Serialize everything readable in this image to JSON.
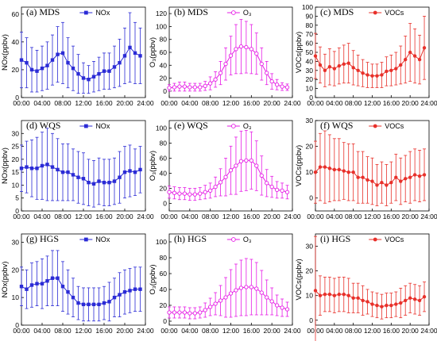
{
  "chart_data": [
    {
      "type": "line",
      "title": "(a) MDS",
      "ylabel": "NOx(ppbv)",
      "color": "#2b2bd6",
      "marker": "square",
      "x": [
        0,
        1,
        2,
        3,
        4,
        5,
        6,
        7,
        8,
        9,
        10,
        11,
        12,
        13,
        14,
        15,
        16,
        17,
        18,
        19,
        20,
        21,
        22,
        23
      ],
      "xticks": [
        "00:00",
        "04:00",
        "08:00",
        "12:00",
        "16:00",
        "20:00",
        "24:00"
      ],
      "ylim": [
        0,
        65
      ],
      "yticks": [
        0,
        20,
        40,
        60
      ],
      "series": [
        {
          "name": "NOx",
          "values": [
            27,
            25,
            20,
            19,
            21,
            23,
            27,
            31,
            32,
            25,
            21,
            17,
            14,
            13,
            15,
            17,
            19,
            19,
            22,
            25,
            30,
            36,
            32,
            30
          ],
          "err": [
            20,
            18,
            16,
            15,
            16,
            17,
            18,
            20,
            22,
            18,
            16,
            14,
            11,
            10,
            11,
            12,
            13,
            13,
            15,
            17,
            20,
            25,
            22,
            20
          ]
        }
      ]
    },
    {
      "type": "line",
      "title": "(b) MDS",
      "ylabel": "O₃(ppbv)",
      "color": "#e61ce6",
      "marker": "circle-open",
      "x": [
        0,
        1,
        2,
        3,
        4,
        5,
        6,
        7,
        8,
        9,
        10,
        11,
        12,
        13,
        14,
        15,
        16,
        17,
        18,
        19,
        20,
        21,
        22,
        23
      ],
      "xticks": [
        "00:00",
        "04:00",
        "08:00",
        "12:00",
        "16:00",
        "20:00",
        "24:00"
      ],
      "ylim": [
        -10,
        130
      ],
      "yticks": [
        0,
        20,
        40,
        60,
        80,
        100,
        120
      ],
      "series": [
        {
          "name": "O₃",
          "values": [
            5,
            6,
            7,
            7,
            6,
            6,
            6,
            8,
            12,
            18,
            28,
            42,
            55,
            65,
            69,
            68,
            65,
            58,
            42,
            28,
            15,
            10,
            7,
            6
          ],
          "err": [
            5,
            6,
            7,
            7,
            6,
            6,
            6,
            7,
            10,
            12,
            18,
            25,
            30,
            38,
            42,
            40,
            38,
            32,
            25,
            18,
            12,
            8,
            6,
            5
          ]
        }
      ]
    },
    {
      "type": "line",
      "title": "(c) MDS",
      "ylabel": "VOCs(ppbv)",
      "color": "#e8302a",
      "marker": "circle",
      "x": [
        0,
        1,
        2,
        3,
        4,
        5,
        6,
        7,
        8,
        9,
        10,
        11,
        12,
        13,
        14,
        15,
        16,
        17,
        18,
        19,
        20,
        21,
        22,
        23
      ],
      "xticks": [
        "00:00",
        "04:00",
        "08:00",
        "12:00",
        "16:00",
        "20:00",
        "24:00"
      ],
      "ylim": [
        0,
        100
      ],
      "yticks": [
        0,
        10,
        20,
        30,
        40,
        50,
        60,
        70,
        80,
        90,
        100
      ],
      "series": [
        {
          "name": "VOCs",
          "values": [
            46,
            36,
            30,
            34,
            32,
            35,
            37,
            38,
            33,
            30,
            27,
            25,
            24,
            24,
            25,
            29,
            30,
            32,
            36,
            42,
            50,
            46,
            42,
            55
          ],
          "err": [
            25,
            20,
            18,
            20,
            19,
            20,
            21,
            22,
            19,
            17,
            15,
            14,
            13,
            13,
            14,
            16,
            17,
            18,
            21,
            26,
            32,
            30,
            27,
            35
          ]
        }
      ]
    },
    {
      "type": "line",
      "title": "(d) WQS",
      "ylabel": "NOx(ppbv)",
      "color": "#2b2bd6",
      "marker": "square",
      "x": [
        0,
        1,
        2,
        3,
        4,
        5,
        6,
        7,
        8,
        9,
        10,
        11,
        12,
        13,
        14,
        15,
        16,
        17,
        18,
        19,
        20,
        21,
        22,
        23
      ],
      "xticks": [
        "00:00",
        "04:00",
        "08:00",
        "12:00",
        "16:00",
        "20:00",
        "24:00"
      ],
      "ylim": [
        0,
        35
      ],
      "yticks": [
        0,
        5,
        10,
        15,
        20,
        25,
        30
      ],
      "series": [
        {
          "name": "NOx",
          "values": [
            16.5,
            17,
            16.5,
            16.5,
            17.5,
            18,
            17,
            16,
            15,
            15,
            14,
            13,
            12.5,
            11,
            10.5,
            11.5,
            11,
            11,
            11.5,
            13,
            15,
            15.5,
            15,
            16
          ],
          "err": [
            9,
            10,
            11,
            12,
            13,
            14,
            13,
            12,
            11,
            11,
            10,
            10,
            10,
            9,
            9,
            9,
            9,
            9,
            9,
            10,
            10,
            10,
            9,
            9
          ]
        }
      ]
    },
    {
      "type": "line",
      "title": "(e) WQS",
      "ylabel": "O₃(ppbv)",
      "color": "#e61ce6",
      "marker": "circle-open",
      "x": [
        0,
        1,
        2,
        3,
        4,
        5,
        6,
        7,
        8,
        9,
        10,
        11,
        12,
        13,
        14,
        15,
        16,
        17,
        18,
        19,
        20,
        21,
        22,
        23
      ],
      "xticks": [
        "00:00",
        "04:00",
        "08:00",
        "12:00",
        "16:00",
        "20:00",
        "24:00"
      ],
      "ylim": [
        -10,
        110
      ],
      "yticks": [
        0,
        20,
        40,
        60,
        80,
        100
      ],
      "series": [
        {
          "name": "O₃",
          "values": [
            15,
            14,
            13,
            13,
            12,
            12,
            13,
            15,
            17,
            22,
            28,
            35,
            44,
            50,
            56,
            57,
            57,
            50,
            37,
            27,
            22,
            18,
            17,
            15
          ],
          "err": [
            8,
            8,
            8,
            8,
            8,
            8,
            8,
            9,
            10,
            13,
            18,
            25,
            32,
            38,
            40,
            40,
            38,
            33,
            26,
            18,
            14,
            11,
            10,
            9
          ]
        }
      ]
    },
    {
      "type": "line",
      "title": "(f) WQS",
      "ylabel": "VOCs(ppbv)",
      "color": "#e8302a",
      "marker": "circle",
      "x": [
        0,
        1,
        2,
        3,
        4,
        5,
        6,
        7,
        8,
        9,
        10,
        11,
        12,
        13,
        14,
        15,
        16,
        17,
        18,
        19,
        20,
        21,
        22,
        23
      ],
      "xticks": [
        "00:00",
        "04:00",
        "08:00",
        "12:00",
        "16:00",
        "20:00",
        "24:00"
      ],
      "ylim": [
        -5,
        30
      ],
      "yticks": [
        0,
        10,
        20,
        30
      ],
      "series": [
        {
          "name": "VOCs",
          "values": [
            10,
            12,
            12,
            11.5,
            11,
            11,
            10.5,
            10,
            10,
            8,
            8,
            7,
            6.5,
            5,
            6,
            5,
            6,
            8,
            6.5,
            7.5,
            8,
            9,
            8.5,
            9
          ],
          "err": [
            12,
            13,
            14,
            13,
            12,
            12,
            11,
            11,
            11,
            10,
            10,
            9,
            9,
            8,
            8,
            8,
            8,
            9,
            9,
            9,
            10,
            10,
            10,
            10
          ]
        }
      ]
    },
    {
      "type": "line",
      "title": "(g) HGS",
      "ylabel": "NOx(ppbv)",
      "color": "#2b2bd6",
      "marker": "square",
      "x": [
        0,
        1,
        2,
        3,
        4,
        5,
        6,
        7,
        8,
        9,
        10,
        11,
        12,
        13,
        14,
        15,
        16,
        17,
        18,
        19,
        20,
        21,
        22,
        23
      ],
      "xticks": [
        "00:00",
        "04:00",
        "08:00",
        "12:00",
        "16:00",
        "20:00",
        "24:00"
      ],
      "ylim": [
        0,
        33
      ],
      "yticks": [
        0,
        10,
        20,
        30
      ],
      "series": [
        {
          "name": "NOx",
          "values": [
            14,
            13,
            14.5,
            15,
            15,
            16,
            17,
            17,
            14,
            12,
            10,
            8,
            7.5,
            7.5,
            7.5,
            7.5,
            8,
            8.5,
            10,
            11,
            12,
            12.5,
            13,
            13
          ],
          "err": [
            7,
            7,
            8,
            8,
            9,
            9,
            10,
            10,
            9,
            8,
            7,
            6,
            6,
            6,
            6,
            6,
            6,
            7,
            7,
            8,
            8,
            8,
            8,
            8
          ]
        }
      ]
    },
    {
      "type": "line",
      "title": "(h) HGS",
      "ylabel": "O₃(ppbv)",
      "color": "#e61ce6",
      "marker": "circle-open",
      "x": [
        0,
        1,
        2,
        3,
        4,
        5,
        6,
        7,
        8,
        9,
        10,
        11,
        12,
        13,
        14,
        15,
        16,
        17,
        18,
        19,
        20,
        21,
        22,
        23
      ],
      "xticks": [
        "00:00",
        "04:00",
        "08:00",
        "12:00",
        "16:00",
        "20:00",
        "24:00"
      ],
      "ylim": [
        -5,
        110
      ],
      "yticks": [
        0,
        20,
        40,
        60,
        80,
        100
      ],
      "series": [
        {
          "name": "O₃",
          "values": [
            11,
            11,
            11,
            11,
            10,
            10,
            11,
            14,
            18,
            22,
            26,
            30,
            35,
            39,
            42,
            43,
            43,
            41,
            36,
            30,
            25,
            20,
            17,
            15
          ],
          "err": [
            7,
            7,
            7,
            7,
            7,
            7,
            7,
            9,
            11,
            14,
            19,
            25,
            30,
            33,
            35,
            36,
            35,
            33,
            28,
            22,
            17,
            13,
            11,
            9
          ]
        }
      ]
    },
    {
      "type": "line",
      "title": "(i) HGS",
      "ylabel": "VOCs(ppbv)",
      "color": "#e8302a",
      "marker": "circle",
      "x": [
        0,
        1,
        2,
        3,
        4,
        5,
        6,
        7,
        8,
        9,
        10,
        11,
        12,
        13,
        14,
        15,
        16,
        17,
        18,
        19,
        20,
        21,
        22,
        23
      ],
      "xticks": [
        "00:00",
        "04:00",
        "08:00",
        "12:00",
        "16:00",
        "20:00",
        "24:00"
      ],
      "ylim": [
        -2,
        35
      ],
      "yticks": [
        0,
        10,
        20,
        30
      ],
      "series": [
        {
          "name": "VOCs",
          "values": [
            12,
            10,
            10.5,
            10.5,
            10,
            10.5,
            10.5,
            10,
            9,
            9,
            8,
            7.5,
            6.5,
            6,
            5.5,
            6,
            6,
            6.5,
            7,
            8,
            9,
            8.5,
            8,
            9.5
          ],
          "err": [
            22,
            8,
            7,
            7,
            7,
            7,
            7,
            7,
            6,
            6,
            6,
            5,
            5,
            5,
            5,
            5,
            5,
            5,
            6,
            6,
            6,
            6,
            6,
            6
          ]
        }
      ]
    }
  ]
}
